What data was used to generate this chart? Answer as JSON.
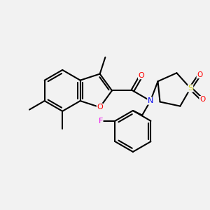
{
  "bg_color": "#f2f2f2",
  "atom_colors": {
    "O": "#ff0000",
    "N": "#0000ee",
    "S": "#cccc00",
    "F": "#ee00ee",
    "C": "#000000"
  },
  "bond_color": "#000000",
  "bond_width": 1.5
}
